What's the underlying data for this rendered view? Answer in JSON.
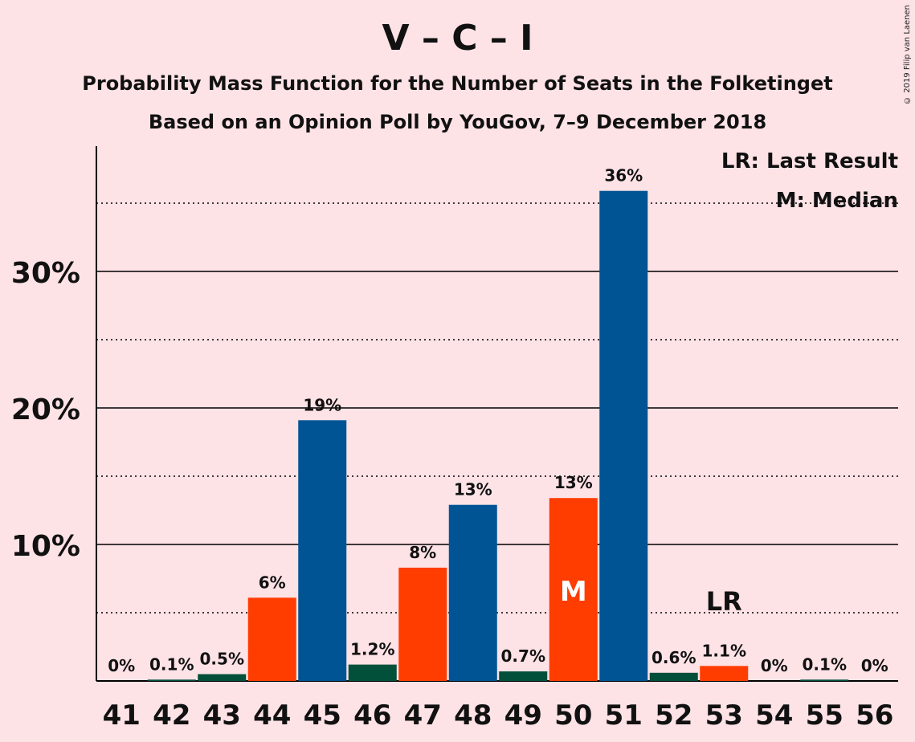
{
  "title": "V – C – I",
  "subtitle1": "Probability Mass Function for the Number of Seats in the Folketinget",
  "subtitle2": "Based on an Opinion Poll by YouGov, 7–9 December 2018",
  "copyright": "© 2019 Filip van Laenen",
  "legend": {
    "lr": "LR: Last Result",
    "m": "M: Median"
  },
  "colors": {
    "background": "#FDE2E6",
    "blue": "#005493",
    "orange": "#FF3D00",
    "green": "#024F3A"
  },
  "chart_data": {
    "type": "bar",
    "categories": [
      "41",
      "42",
      "43",
      "44",
      "45",
      "46",
      "47",
      "48",
      "49",
      "50",
      "51",
      "52",
      "53",
      "54",
      "55",
      "56"
    ],
    "values": [
      0,
      0.1,
      0.5,
      6.1,
      19.1,
      1.2,
      8.3,
      12.9,
      0.7,
      13.4,
      35.9,
      0.6,
      1.1,
      0,
      0.1,
      0
    ],
    "labels": [
      "0%",
      "0.1%",
      "0.5%",
      "6%",
      "19%",
      "1.2%",
      "8%",
      "13%",
      "0.7%",
      "13%",
      "36%",
      "0.6%",
      "1.1%",
      "0%",
      "0.1%",
      "0%"
    ],
    "bar_colors": [
      "green",
      "green",
      "green",
      "orange",
      "blue",
      "green",
      "orange",
      "blue",
      "green",
      "orange",
      "blue",
      "green",
      "orange",
      "green",
      "green",
      "green"
    ],
    "ylim": [
      0,
      39
    ],
    "yticks": [
      10,
      20,
      30
    ],
    "ytick_labels": [
      "10%",
      "20%",
      "30%"
    ],
    "minor_gridlines": [
      5,
      15,
      25,
      35
    ],
    "median_seat": "50",
    "median_marker": "M",
    "last_result_seat": "53",
    "last_result_marker": "LR"
  }
}
